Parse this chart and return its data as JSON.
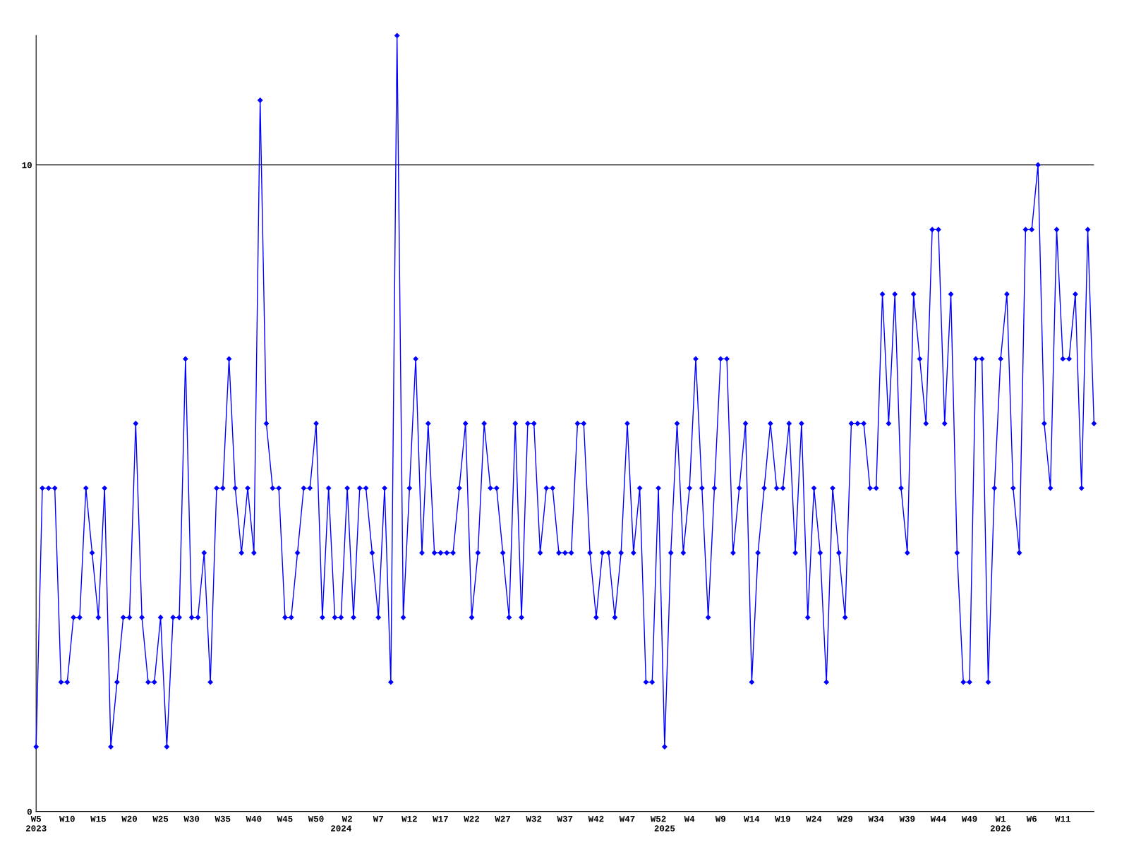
{
  "chart_data": {
    "type": "line",
    "categories": [
      "W5\n2023",
      null,
      null,
      null,
      null,
      "W10",
      null,
      null,
      null,
      null,
      "W15",
      null,
      null,
      null,
      null,
      "W20",
      null,
      null,
      null,
      null,
      "W25",
      null,
      null,
      null,
      null,
      "W30",
      null,
      null,
      null,
      null,
      "W35",
      null,
      null,
      null,
      null,
      "W40",
      null,
      null,
      null,
      null,
      "W45",
      null,
      null,
      null,
      null,
      "W50",
      null,
      null,
      null,
      "\n2024",
      "W2",
      null,
      null,
      null,
      null,
      "W7",
      null,
      null,
      null,
      null,
      "W12",
      null,
      null,
      null,
      null,
      "W17",
      null,
      null,
      null,
      null,
      "W22",
      null,
      null,
      null,
      null,
      "W27",
      null,
      null,
      null,
      null,
      "W32",
      null,
      null,
      null,
      null,
      "W37",
      null,
      null,
      null,
      null,
      "W42",
      null,
      null,
      null,
      null,
      "W47",
      null,
      null,
      null,
      null,
      "W52",
      "\n2025",
      null,
      null,
      null,
      "W4",
      null,
      null,
      null,
      null,
      "W9",
      null,
      null,
      null,
      null,
      "W14",
      null,
      null,
      null,
      null,
      "W19",
      null,
      null,
      null,
      null,
      "W24",
      null,
      null,
      null,
      null,
      "W29",
      null,
      null,
      null,
      null,
      "W34",
      null,
      null,
      null,
      null,
      "W39",
      null,
      null,
      null,
      null,
      "W44",
      null,
      null,
      null,
      null,
      "W49",
      null,
      null,
      null,
      null,
      "W1\n2026",
      null,
      null,
      null,
      null,
      "W6",
      null,
      null,
      null,
      null,
      "W11",
      null,
      null,
      null,
      null,
      null
    ],
    "series": [
      {
        "color": "#0000ff",
        "values": [
          1,
          5,
          5,
          5,
          2,
          2,
          3,
          3,
          5,
          4,
          3,
          5,
          1,
          2,
          3,
          3,
          6,
          3,
          2,
          2,
          3,
          1,
          3,
          3,
          7,
          3,
          3,
          4,
          2,
          5,
          5,
          7,
          5,
          4,
          5,
          4,
          11,
          6,
          5,
          5,
          3,
          3,
          4,
          5,
          5,
          6,
          3,
          5,
          3,
          3,
          5,
          3,
          5,
          5,
          4,
          3,
          5,
          2,
          12,
          3,
          5,
          7,
          4,
          6,
          4,
          4,
          4,
          4,
          5,
          6,
          3,
          4,
          6,
          5,
          5,
          4,
          3,
          6,
          3,
          6,
          6,
          4,
          5,
          5,
          4,
          4,
          4,
          6,
          6,
          4,
          3,
          4,
          4,
          3,
          4,
          6,
          4,
          5,
          2,
          2,
          5,
          1,
          4,
          6,
          4,
          5,
          7,
          5,
          3,
          5,
          7,
          7,
          4,
          5,
          6,
          2,
          4,
          5,
          6,
          5,
          5,
          6,
          4,
          6,
          3,
          5,
          4,
          2,
          5,
          4,
          3,
          6,
          6,
          6,
          5,
          5,
          8,
          6,
          8,
          5,
          4,
          8,
          7,
          6,
          9,
          9,
          6,
          8,
          4,
          2,
          2,
          7,
          7,
          2,
          5,
          7,
          8,
          5,
          4,
          9,
          9,
          10,
          6,
          5,
          9,
          7,
          7,
          8,
          5,
          9,
          6
        ]
      }
    ],
    "ylim": [
      0,
      12
    ],
    "yticks": [
      0,
      10
    ],
    "grid": "y",
    "marker": "diamond",
    "line_style": "solid",
    "legend": false
  }
}
